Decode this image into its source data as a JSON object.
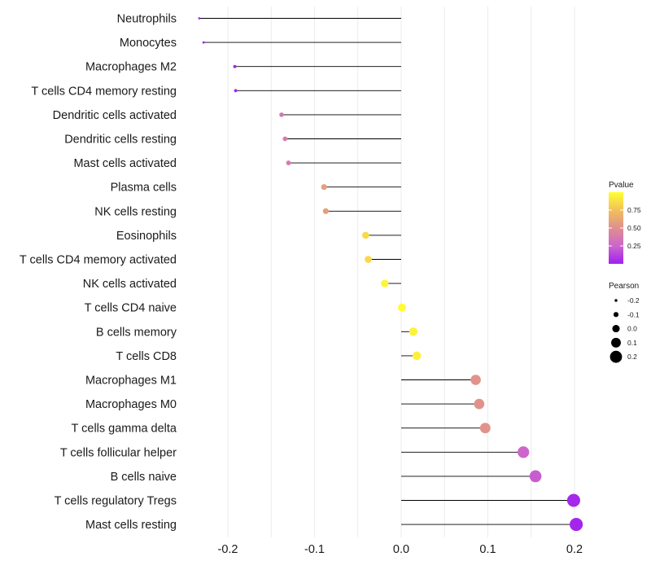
{
  "chart_data": {
    "type": "lollipop",
    "title": "",
    "xlabel": "",
    "ylabel": "",
    "xlim": [
      -0.25,
      0.215
    ],
    "xticks": [
      -0.2,
      -0.1,
      0.0,
      0.1,
      0.2
    ],
    "xtick_labels": [
      "-0.2",
      "-0.1",
      "0.0",
      "0.1",
      "0.2"
    ],
    "grid": true,
    "categories": [
      "Neutrophils",
      "Monocytes",
      "Macrophages M2",
      "T cells CD4 memory resting",
      "Dendritic cells activated",
      "Dendritic cells resting",
      "Mast cells activated",
      "Plasma cells",
      "NK cells resting",
      "Eosinophils",
      "T cells CD4 memory activated",
      "NK cells activated",
      "T cells CD4 naive",
      "B cells memory",
      "T cells CD8",
      "Macrophages M1",
      "Macrophages M0",
      "T cells gamma delta",
      "T cells follicular helper",
      "B cells naive",
      "T cells regulatory  Tregs ",
      "Mast cells resting"
    ],
    "pearson": [
      -0.233,
      -0.228,
      -0.192,
      -0.191,
      -0.138,
      -0.134,
      -0.13,
      -0.089,
      -0.087,
      -0.041,
      -0.038,
      -0.019,
      0.001,
      0.014,
      0.018,
      0.086,
      0.09,
      0.097,
      0.141,
      0.155,
      0.199,
      0.202
    ],
    "pvalue": [
      0.0,
      0.0,
      0.02,
      0.02,
      0.35,
      0.38,
      0.38,
      0.58,
      0.58,
      0.85,
      0.85,
      0.96,
      0.99,
      0.95,
      0.94,
      0.52,
      0.52,
      0.52,
      0.25,
      0.22,
      0.03,
      0.02
    ],
    "legend_color": {
      "title": "Pvalue",
      "ticks": [
        0.25,
        0.5,
        0.75
      ],
      "tick_labels": [
        "0.25",
        "0.50",
        "0.75"
      ],
      "range": [
        0.0,
        1.0
      ],
      "colors": [
        "#a020f0",
        "#cc66cc",
        "#e08f8f",
        "#f2c05a",
        "#ffff33"
      ],
      "placement": "right"
    },
    "legend_size": {
      "title": "Pearson",
      "values": [
        -0.2,
        -0.1,
        0.0,
        0.1,
        0.2
      ],
      "labels": [
        "-0.2",
        "-0.1",
        "0.0",
        "0.1",
        "0.2"
      ],
      "placement": "right"
    }
  }
}
